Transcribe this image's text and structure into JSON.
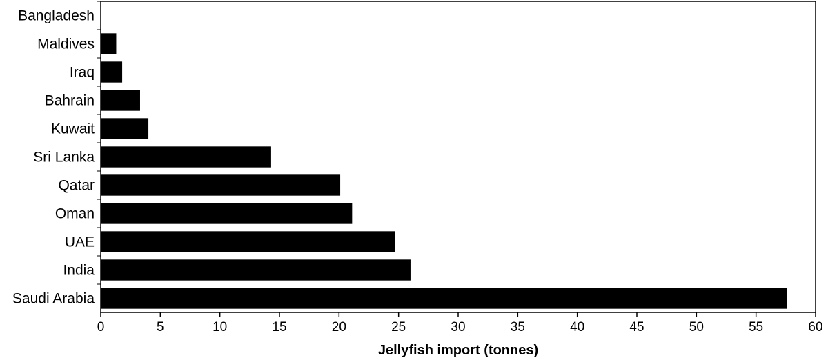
{
  "chart_data": {
    "type": "bar",
    "orientation": "horizontal",
    "title": "",
    "xlabel": "Jellyfish import (tonnes)",
    "ylabel": "",
    "xlim": [
      0,
      60
    ],
    "xticks": [
      0,
      5,
      10,
      15,
      20,
      25,
      30,
      35,
      40,
      45,
      50,
      55,
      60
    ],
    "grid": false,
    "bar_color": "#000000",
    "categories": [
      "Bangladesh",
      "Maldives",
      "Iraq",
      "Bahrain",
      "Kuwait",
      "Sri Lanka",
      "Qatar",
      "Oman",
      "UAE",
      "India",
      "Saudi Arabia"
    ],
    "values": [
      0,
      1.3,
      1.8,
      3.3,
      4.0,
      14.3,
      20.1,
      21.1,
      24.7,
      26.0,
      57.6
    ]
  }
}
